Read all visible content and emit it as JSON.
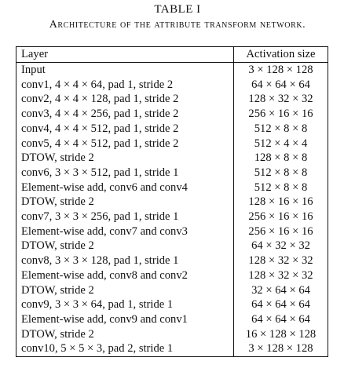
{
  "caption": {
    "label": "TABLE I",
    "title": "Architecture of the attribute transform network."
  },
  "table": {
    "headers": [
      "Layer",
      "Activation size"
    ],
    "rows": [
      {
        "layer": "Input",
        "size": "3 × 128 × 128"
      },
      {
        "layer": "conv1, 4 × 4 × 64, pad 1, stride 2",
        "size": "64 × 64 × 64"
      },
      {
        "layer": "conv2, 4 × 4 × 128, pad 1, stride 2",
        "size": "128 × 32 × 32"
      },
      {
        "layer": "conv3, 4 × 4 × 256, pad 1, stride 2",
        "size": "256 × 16 × 16"
      },
      {
        "layer": "conv4, 4 × 4 × 512, pad 1, stride 2",
        "size": "512 × 8 × 8"
      },
      {
        "layer": "conv5, 4 × 4 × 512, pad 1, stride 2",
        "size": "512 × 4 × 4"
      },
      {
        "layer": "DTOW, stride 2",
        "size": "128 × 8 × 8"
      },
      {
        "layer": "conv6, 3 × 3 × 512, pad 1, stride 1",
        "size": "512 × 8 × 8"
      },
      {
        "layer": "Element-wise add, conv6 and conv4",
        "size": "512 × 8 × 8"
      },
      {
        "layer": "DTOW, stride 2",
        "size": "128 × 16 × 16"
      },
      {
        "layer": "conv7, 3 × 3 × 256, pad 1, stride 1",
        "size": "256 × 16 × 16"
      },
      {
        "layer": "Element-wise add, conv7 and conv3",
        "size": "256 × 16 × 16"
      },
      {
        "layer": "DTOW, stride 2",
        "size": "64 × 32 × 32"
      },
      {
        "layer": "conv8, 3 × 3 × 128, pad 1, stride 1",
        "size": "128 × 32 × 32"
      },
      {
        "layer": "Element-wise add, conv8 and conv2",
        "size": "128 × 32 × 32"
      },
      {
        "layer": "DTOW, stride 2",
        "size": "32 × 64 × 64"
      },
      {
        "layer": "conv9, 3 × 3 × 64, pad 1, stride 1",
        "size": "64 × 64 × 64"
      },
      {
        "layer": "Element-wise add, conv9 and conv1",
        "size": "64 × 64 × 64"
      },
      {
        "layer": "DTOW, stride 2",
        "size": "16 × 128 × 128"
      },
      {
        "layer": "conv10, 5 × 5 × 3, pad 2, stride 1",
        "size": "3 × 128 × 128"
      }
    ]
  }
}
